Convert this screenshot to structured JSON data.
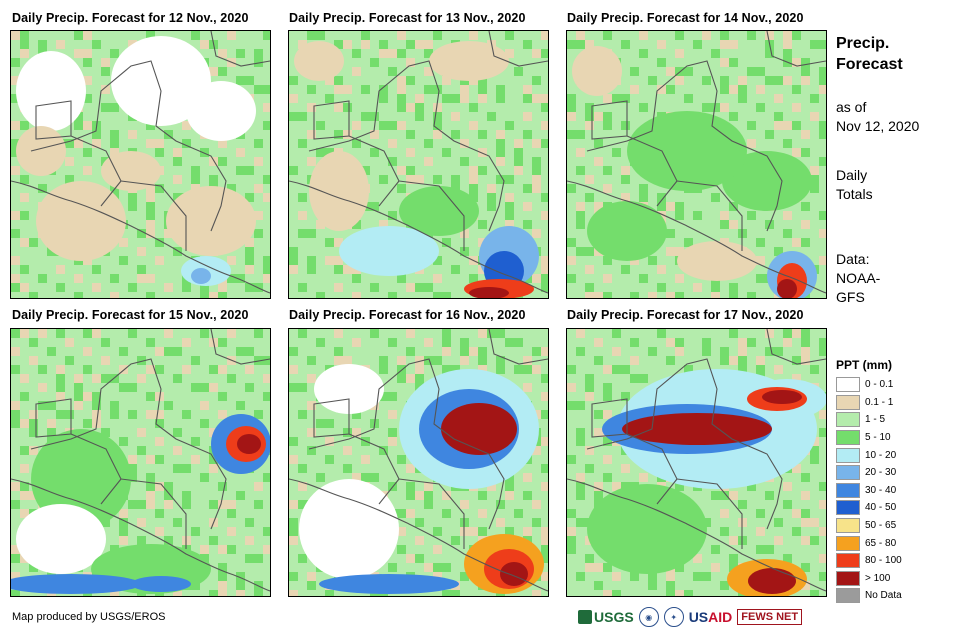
{
  "panels": [
    {
      "title": "Daily Precip. Forecast for 12 Nov., 2020"
    },
    {
      "title": "Daily Precip. Forecast for 13 Nov., 2020"
    },
    {
      "title": "Daily Precip. Forecast for 14 Nov., 2020"
    },
    {
      "title": "Daily Precip. Forecast for 15 Nov., 2020"
    },
    {
      "title": "Daily Precip. Forecast for 16 Nov., 2020"
    },
    {
      "title": "Daily Precip. Forecast for 17 Nov., 2020"
    }
  ],
  "sidebar": {
    "title_line1": "Precip.",
    "title_line2": "Forecast",
    "as_of_line1": "as of",
    "as_of_line2": "Nov 12, 2020",
    "totals_line1": "Daily",
    "totals_line2": "Totals",
    "data_line1": "Data:",
    "data_line2": "NOAA-",
    "data_line3": "GFS"
  },
  "legend": {
    "title": "PPT (mm)",
    "items": [
      {
        "label": "0 - 0.1",
        "color": "#ffffff"
      },
      {
        "label": "0.1 - 1",
        "color": "#e8d6b3"
      },
      {
        "label": "1 - 5",
        "color": "#b4ecac"
      },
      {
        "label": "5 - 10",
        "color": "#74dd6c"
      },
      {
        "label": "10 - 20",
        "color": "#b3ecf4"
      },
      {
        "label": "20 - 30",
        "color": "#78b4ea"
      },
      {
        "label": "30 - 40",
        "color": "#3f86e0"
      },
      {
        "label": "40 - 50",
        "color": "#1f5fd0"
      },
      {
        "label": "50 - 65",
        "color": "#f7e38a"
      },
      {
        "label": "65 - 80",
        "color": "#f5a11f"
      },
      {
        "label": "80 - 100",
        "color": "#ee3d1a"
      },
      {
        "label": "> 100",
        "color": "#a31515"
      },
      {
        "label": "No Data",
        "color": "#9b9b9b"
      }
    ]
  },
  "footer": {
    "credit": "Map produced by USGS/EROS",
    "logo_usgs": "USGS",
    "logo_usaid_a": "US",
    "logo_usaid_b": "AID",
    "logo_fews": "FEWS NET"
  }
}
